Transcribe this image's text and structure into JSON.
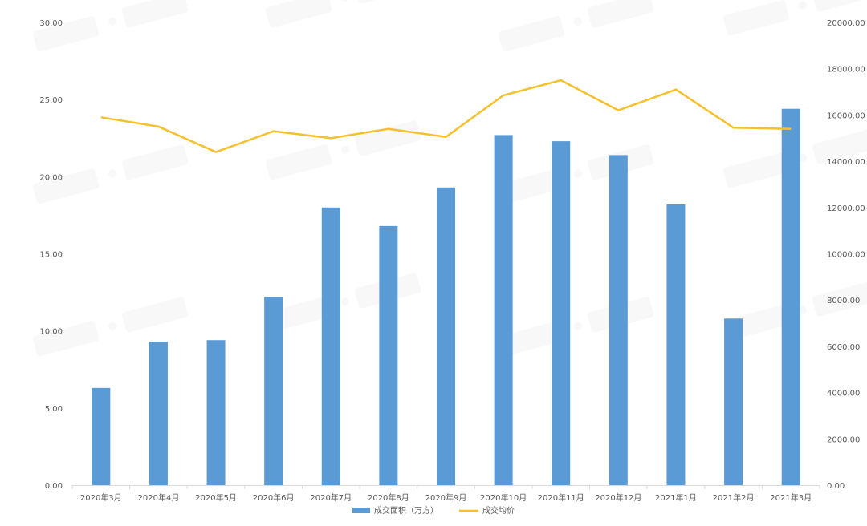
{
  "chart_data": {
    "type": "bar",
    "categories": [
      "2020年3月",
      "2020年4月",
      "2020年5月",
      "2020年6月",
      "2020年7月",
      "2020年8月",
      "2020年9月",
      "2020年10月",
      "2020年11月",
      "2020年12月",
      "2021年1月",
      "2021年2月",
      "2021年3月"
    ],
    "series": [
      {
        "name": "成交面积（万方）",
        "type": "bar",
        "axis": "left",
        "color": "#5b9bd5",
        "values": [
          6.3,
          9.3,
          9.4,
          12.2,
          18.0,
          16.8,
          19.3,
          22.7,
          22.3,
          21.4,
          18.2,
          10.8,
          24.4
        ]
      },
      {
        "name": "成交均价",
        "type": "line",
        "axis": "right",
        "color": "#f5c02b",
        "values": [
          15900,
          15500,
          14400,
          15300,
          15000,
          15400,
          15050,
          16850,
          17500,
          16200,
          17100,
          15450,
          15400
        ]
      }
    ],
    "y_left": {
      "lim": [
        0,
        30
      ],
      "ticks": [
        "0.00",
        "5.00",
        "10.00",
        "15.00",
        "20.00",
        "25.00",
        "30.00"
      ]
    },
    "y_right": {
      "lim": [
        0,
        20000
      ],
      "ticks": [
        "0.00",
        "2000.00",
        "4000.00",
        "6000.00",
        "8000.00",
        "10000.00",
        "12000.00",
        "14000.00",
        "16000.00",
        "18000.00",
        "20000.00"
      ]
    },
    "grid": false,
    "legend_position": "bottom-center"
  }
}
